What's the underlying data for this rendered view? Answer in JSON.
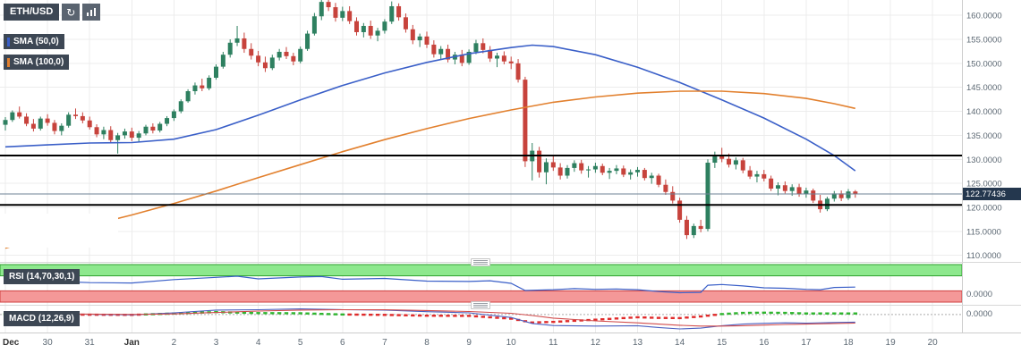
{
  "toolbar": {
    "symbol": "ETH/USD",
    "refresh_icon": "↻"
  },
  "indicators": {
    "sma50_label": "SMA (50,0)",
    "sma100_label": "SMA (100,0)",
    "rsi_label": "RSI (14,70,30,1)",
    "macd_label": "MACD (12,26,9)"
  },
  "price_axis": {
    "current_price_label": "122.77436",
    "ticks": [
      {
        "value": 160,
        "label": "160.0000"
      },
      {
        "value": 155,
        "label": "155.0000"
      },
      {
        "value": 150,
        "label": "150.0000"
      },
      {
        "value": 145,
        "label": "145.0000"
      },
      {
        "value": 140,
        "label": "140.0000"
      },
      {
        "value": 135,
        "label": "135.0000"
      },
      {
        "value": 130,
        "label": "130.0000"
      },
      {
        "value": 125,
        "label": "125.0000"
      },
      {
        "value": 120,
        "label": "120.0000"
      },
      {
        "value": 115,
        "label": "115.0000"
      },
      {
        "value": 110,
        "label": "110.0000"
      }
    ]
  },
  "rsi_panel": {
    "axis_label": "0.0000"
  },
  "macd_panel": {
    "axis_label": "0.0000"
  },
  "time_axis": {
    "ticks": [
      {
        "i": 0,
        "label": "Dec",
        "bold": true
      },
      {
        "i": 6,
        "label": "30"
      },
      {
        "i": 12,
        "label": "31"
      },
      {
        "i": 18,
        "label": "Jan",
        "bold": true
      },
      {
        "i": 24,
        "label": "2"
      },
      {
        "i": 30,
        "label": "3"
      },
      {
        "i": 36,
        "label": "4"
      },
      {
        "i": 42,
        "label": "5"
      },
      {
        "i": 48,
        "label": "6"
      },
      {
        "i": 54,
        "label": "7"
      },
      {
        "i": 60,
        "label": "8"
      },
      {
        "i": 66,
        "label": "9"
      },
      {
        "i": 72,
        "label": "10"
      },
      {
        "i": 78,
        "label": "11"
      },
      {
        "i": 84,
        "label": "12"
      },
      {
        "i": 90,
        "label": "13"
      },
      {
        "i": 96,
        "label": "14"
      },
      {
        "i": 102,
        "label": "15"
      },
      {
        "i": 108,
        "label": "16"
      },
      {
        "i": 114,
        "label": "17"
      },
      {
        "i": 120,
        "label": "18"
      },
      {
        "i": 126,
        "label": "19"
      },
      {
        "i": 132,
        "label": "20"
      }
    ]
  },
  "colors": {
    "up": "#2e8060",
    "down": "#c7433c",
    "sma50": "#3a5fc8",
    "sma100": "#e2802e",
    "rsi_line": "#3a5fc8",
    "macd_line": "#4a5fc0",
    "macd_signal": "#d14b4b",
    "hist_up": "#2eb52e",
    "hist_down": "#e02a2a",
    "overbought_fill": "#8de88d",
    "overbought_border": "#2fa12f",
    "oversold_fill": "#f49898",
    "oversold_border": "#cf4040",
    "level_line": "#000000",
    "price_line": "#6d8296",
    "grid": "#ececec",
    "axis_text": "#5c6873",
    "badge_bg": "#3d4754",
    "icon_btn_bg": "#5a6470",
    "price_badge_bg": "#24374e"
  },
  "chart_data": {
    "type": "candlestick",
    "title": "ETH/USD 4-hour candles with SMA(50), SMA(100), RSI(14,70,30,1), MACD(12,26,9)",
    "interval": "4h",
    "ylim": [
      109,
      163.2
    ],
    "rsi_range": [
      0,
      100
    ],
    "macd_range": [
      -9,
      3.5
    ],
    "current_price": 122.77436,
    "support_resistance": [
      130.8,
      120.5
    ],
    "candles": [
      [
        137.2,
        138.8,
        136.0,
        138.2
      ],
      [
        138.2,
        140.2,
        137.8,
        139.8
      ],
      [
        139.8,
        141.0,
        138.5,
        138.9
      ],
      [
        138.9,
        139.6,
        136.9,
        137.4
      ],
      [
        137.4,
        138.4,
        135.8,
        136.4
      ],
      [
        136.4,
        138.9,
        136.0,
        138.5
      ],
      [
        138.5,
        139.4,
        137.0,
        137.6
      ],
      [
        137.6,
        138.2,
        135.2,
        135.9
      ],
      [
        135.9,
        137.5,
        135.0,
        137.0
      ],
      [
        137.0,
        139.8,
        136.6,
        139.3
      ],
      [
        139.3,
        140.6,
        138.4,
        139.0
      ],
      [
        139.0,
        139.8,
        137.5,
        138.1
      ],
      [
        138.1,
        138.9,
        136.2,
        136.7
      ],
      [
        136.7,
        137.3,
        134.6,
        135.2
      ],
      [
        135.2,
        136.8,
        134.2,
        136.1
      ],
      [
        136.1,
        136.9,
        133.4,
        134.0
      ],
      [
        134.0,
        135.5,
        131.2,
        135.0
      ],
      [
        135.0,
        136.4,
        134.3,
        135.8
      ],
      [
        135.8,
        136.6,
        133.8,
        134.5
      ],
      [
        134.5,
        135.9,
        133.5,
        135.4
      ],
      [
        135.4,
        137.2,
        135.0,
        136.8
      ],
      [
        136.8,
        137.5,
        135.4,
        136.0
      ],
      [
        136.0,
        137.8,
        135.6,
        137.4
      ],
      [
        137.4,
        139.0,
        136.9,
        138.6
      ],
      [
        138.6,
        140.4,
        138.0,
        140.0
      ],
      [
        140.0,
        142.5,
        139.6,
        142.1
      ],
      [
        142.1,
        144.6,
        141.8,
        144.2
      ],
      [
        144.2,
        146.0,
        143.5,
        145.4
      ],
      [
        145.4,
        146.8,
        144.2,
        144.8
      ],
      [
        144.8,
        147.5,
        144.4,
        147.0
      ],
      [
        147.0,
        149.8,
        146.6,
        149.3
      ],
      [
        149.3,
        152.4,
        148.9,
        151.8
      ],
      [
        151.8,
        155.0,
        151.2,
        154.3
      ],
      [
        154.3,
        157.8,
        153.6,
        155.2
      ],
      [
        155.2,
        156.4,
        152.2,
        153.0
      ],
      [
        153.0,
        154.2,
        150.8,
        151.6
      ],
      [
        151.6,
        152.6,
        149.4,
        150.2
      ],
      [
        150.2,
        151.4,
        148.2,
        149.0
      ],
      [
        149.0,
        151.8,
        148.6,
        151.2
      ],
      [
        151.2,
        153.0,
        150.6,
        152.4
      ],
      [
        152.4,
        153.4,
        150.9,
        151.5
      ],
      [
        151.5,
        152.2,
        149.6,
        150.4
      ],
      [
        150.4,
        153.5,
        150.0,
        153.0
      ],
      [
        153.0,
        156.8,
        152.6,
        156.2
      ],
      [
        156.2,
        160.5,
        155.8,
        159.8
      ],
      [
        159.8,
        163.8,
        159.0,
        162.8
      ],
      [
        162.8,
        164.9,
        160.9,
        161.7
      ],
      [
        161.7,
        162.6,
        158.7,
        159.5
      ],
      [
        159.5,
        161.8,
        158.8,
        160.9
      ],
      [
        160.9,
        161.9,
        158.2,
        158.8
      ],
      [
        158.8,
        159.6,
        155.8,
        156.5
      ],
      [
        156.5,
        158.4,
        155.4,
        157.8
      ],
      [
        157.8,
        158.9,
        155.1,
        155.8
      ],
      [
        155.8,
        157.4,
        154.6,
        156.8
      ],
      [
        156.8,
        159.2,
        156.2,
        158.7
      ],
      [
        158.7,
        162.9,
        158.2,
        161.9
      ],
      [
        161.9,
        162.5,
        158.9,
        159.6
      ],
      [
        159.6,
        160.4,
        156.4,
        157.1
      ],
      [
        157.1,
        158.0,
        154.0,
        154.8
      ],
      [
        154.8,
        156.2,
        153.4,
        155.6
      ],
      [
        155.6,
        156.6,
        153.2,
        153.9
      ],
      [
        153.9,
        154.8,
        151.2,
        151.9
      ],
      [
        151.9,
        153.6,
        150.9,
        153.0
      ],
      [
        153.0,
        153.9,
        150.2,
        150.8
      ],
      [
        150.8,
        152.4,
        149.8,
        151.8
      ],
      [
        151.8,
        152.8,
        149.4,
        150.1
      ],
      [
        150.1,
        152.9,
        149.7,
        152.4
      ],
      [
        152.4,
        154.9,
        151.9,
        154.2
      ],
      [
        154.2,
        155.2,
        152.1,
        152.8
      ],
      [
        152.8,
        153.6,
        150.3,
        151.0
      ],
      [
        151.0,
        152.2,
        149.2,
        151.6
      ],
      [
        151.6,
        152.5,
        149.8,
        150.4
      ],
      [
        150.4,
        151.4,
        148.8,
        150.0
      ],
      [
        150.0,
        150.9,
        146.0,
        146.6
      ],
      [
        146.6,
        147.2,
        128.4,
        129.6
      ],
      [
        129.6,
        133.4,
        125.6,
        131.8
      ],
      [
        131.8,
        132.6,
        126.2,
        127.3
      ],
      [
        127.3,
        130.2,
        124.8,
        129.4
      ],
      [
        129.4,
        130.9,
        127.6,
        128.3
      ],
      [
        128.3,
        129.2,
        125.8,
        126.6
      ],
      [
        126.6,
        128.8,
        126.0,
        128.2
      ],
      [
        128.2,
        129.8,
        127.4,
        129.2
      ],
      [
        129.2,
        129.9,
        127.0,
        127.7
      ],
      [
        127.7,
        128.6,
        126.2,
        127.9
      ],
      [
        127.9,
        129.3,
        127.2,
        128.6
      ],
      [
        128.6,
        129.1,
        126.7,
        127.2
      ],
      [
        127.2,
        128.2,
        125.9,
        127.6
      ],
      [
        127.6,
        128.8,
        126.9,
        128.1
      ],
      [
        128.1,
        128.7,
        126.3,
        126.8
      ],
      [
        126.8,
        127.9,
        125.8,
        127.3
      ],
      [
        127.3,
        128.4,
        126.4,
        127.8
      ],
      [
        127.8,
        128.2,
        125.6,
        126.1
      ],
      [
        126.1,
        127.2,
        124.9,
        126.6
      ],
      [
        126.6,
        127.0,
        124.2,
        124.7
      ],
      [
        124.7,
        125.8,
        122.6,
        123.2
      ],
      [
        123.2,
        124.4,
        120.8,
        121.4
      ],
      [
        121.4,
        122.0,
        116.8,
        117.4
      ],
      [
        117.4,
        118.2,
        113.4,
        114.2
      ],
      [
        114.2,
        116.6,
        113.6,
        116.1
      ],
      [
        116.1,
        117.4,
        114.8,
        115.5
      ],
      [
        115.5,
        130.0,
        115.0,
        129.3
      ],
      [
        129.3,
        131.6,
        128.2,
        130.8
      ],
      [
        130.8,
        132.4,
        129.4,
        130.1
      ],
      [
        130.1,
        131.2,
        128.3,
        128.9
      ],
      [
        128.9,
        130.4,
        127.9,
        129.8
      ],
      [
        129.8,
        130.3,
        127.1,
        127.7
      ],
      [
        127.7,
        128.6,
        125.9,
        126.4
      ],
      [
        126.4,
        127.6,
        125.2,
        126.9
      ],
      [
        126.9,
        127.8,
        125.4,
        126.0
      ],
      [
        126.0,
        126.6,
        123.4,
        123.9
      ],
      [
        123.9,
        125.2,
        122.5,
        124.6
      ],
      [
        124.6,
        125.4,
        122.9,
        123.4
      ],
      [
        123.4,
        124.8,
        122.4,
        124.2
      ],
      [
        124.2,
        124.9,
        122.2,
        122.8
      ],
      [
        122.8,
        124.1,
        122.0,
        123.5
      ],
      [
        123.5,
        123.9,
        120.9,
        121.4
      ],
      [
        121.4,
        122.6,
        118.9,
        119.6
      ],
      [
        119.6,
        122.2,
        119.2,
        121.8
      ],
      [
        121.8,
        123.4,
        121.2,
        122.9
      ],
      [
        122.9,
        123.5,
        121.3,
        121.9
      ],
      [
        121.9,
        123.8,
        121.5,
        123.3
      ],
      [
        123.3,
        123.6,
        122.0,
        122.77
      ]
    ],
    "sma50": [
      [
        0,
        132.6
      ],
      [
        6,
        133.0
      ],
      [
        12,
        133.4
      ],
      [
        18,
        133.5
      ],
      [
        24,
        134.2
      ],
      [
        30,
        136.2
      ],
      [
        36,
        139.2
      ],
      [
        42,
        142.4
      ],
      [
        48,
        145.4
      ],
      [
        54,
        148.0
      ],
      [
        60,
        150.2
      ],
      [
        66,
        152.0
      ],
      [
        72,
        153.3
      ],
      [
        75,
        153.8
      ],
      [
        78,
        153.5
      ],
      [
        84,
        151.8
      ],
      [
        90,
        149.2
      ],
      [
        96,
        146.0
      ],
      [
        102,
        142.4
      ],
      [
        108,
        138.6
      ],
      [
        114,
        134.2
      ],
      [
        118,
        130.8
      ],
      [
        121,
        127.6
      ]
    ],
    "sma100": [
      [
        0,
        111.5
      ],
      [
        6,
        114.0
      ],
      [
        12,
        116.2
      ],
      [
        18,
        118.4
      ],
      [
        24,
        120.8
      ],
      [
        30,
        123.4
      ],
      [
        36,
        126.2
      ],
      [
        42,
        128.9
      ],
      [
        48,
        131.6
      ],
      [
        54,
        134.1
      ],
      [
        60,
        136.4
      ],
      [
        66,
        138.5
      ],
      [
        72,
        140.3
      ],
      [
        78,
        141.9
      ],
      [
        84,
        143.0
      ],
      [
        90,
        143.8
      ],
      [
        96,
        144.2
      ],
      [
        102,
        144.2
      ],
      [
        108,
        143.7
      ],
      [
        114,
        142.7
      ],
      [
        118,
        141.6
      ],
      [
        121,
        140.6
      ]
    ],
    "rsi": {
      "overbought": 70,
      "oversold": 30,
      "points": [
        [
          0,
          55
        ],
        [
          6,
          56
        ],
        [
          12,
          52
        ],
        [
          18,
          51
        ],
        [
          24,
          60
        ],
        [
          30,
          66
        ],
        [
          33,
          69
        ],
        [
          36,
          62
        ],
        [
          42,
          67
        ],
        [
          45,
          68
        ],
        [
          48,
          61
        ],
        [
          54,
          63
        ],
        [
          60,
          56
        ],
        [
          66,
          55
        ],
        [
          69,
          57
        ],
        [
          72,
          50
        ],
        [
          74,
          31
        ],
        [
          78,
          33
        ],
        [
          81,
          36
        ],
        [
          84,
          34
        ],
        [
          87,
          35
        ],
        [
          90,
          33
        ],
        [
          93,
          28
        ],
        [
          96,
          25
        ],
        [
          99,
          26
        ],
        [
          100,
          45
        ],
        [
          102,
          47
        ],
        [
          105,
          43
        ],
        [
          108,
          38
        ],
        [
          111,
          37
        ],
        [
          114,
          34
        ],
        [
          116,
          33
        ],
        [
          118,
          39
        ],
        [
          121,
          40
        ]
      ]
    },
    "macd": {
      "points_format": [
        "index",
        "macd",
        "signal"
      ],
      "points": [
        [
          0,
          0.3,
          0.2
        ],
        [
          12,
          0.1,
          0.2
        ],
        [
          18,
          -0.2,
          0.0
        ],
        [
          24,
          0.8,
          0.3
        ],
        [
          30,
          2.2,
          1.0
        ],
        [
          36,
          2.4,
          1.7
        ],
        [
          42,
          2.8,
          2.2
        ],
        [
          48,
          2.4,
          2.4
        ],
        [
          54,
          2.2,
          2.4
        ],
        [
          60,
          1.4,
          2.0
        ],
        [
          66,
          0.8,
          1.5
        ],
        [
          72,
          -1.5,
          0.6
        ],
        [
          75,
          -4.5,
          -0.5
        ],
        [
          78,
          -5.5,
          -1.8
        ],
        [
          84,
          -5.8,
          -3.2
        ],
        [
          90,
          -5.6,
          -4.2
        ],
        [
          93,
          -6.5,
          -4.8
        ],
        [
          96,
          -7.2,
          -5.4
        ],
        [
          99,
          -6.8,
          -5.8
        ],
        [
          102,
          -5.6,
          -5.8
        ],
        [
          105,
          -4.8,
          -5.6
        ],
        [
          108,
          -4.4,
          -5.3
        ],
        [
          111,
          -4.2,
          -5.0
        ],
        [
          114,
          -4.3,
          -4.8
        ],
        [
          118,
          -4.0,
          -4.5
        ],
        [
          121,
          -3.8,
          -4.3
        ]
      ]
    }
  }
}
